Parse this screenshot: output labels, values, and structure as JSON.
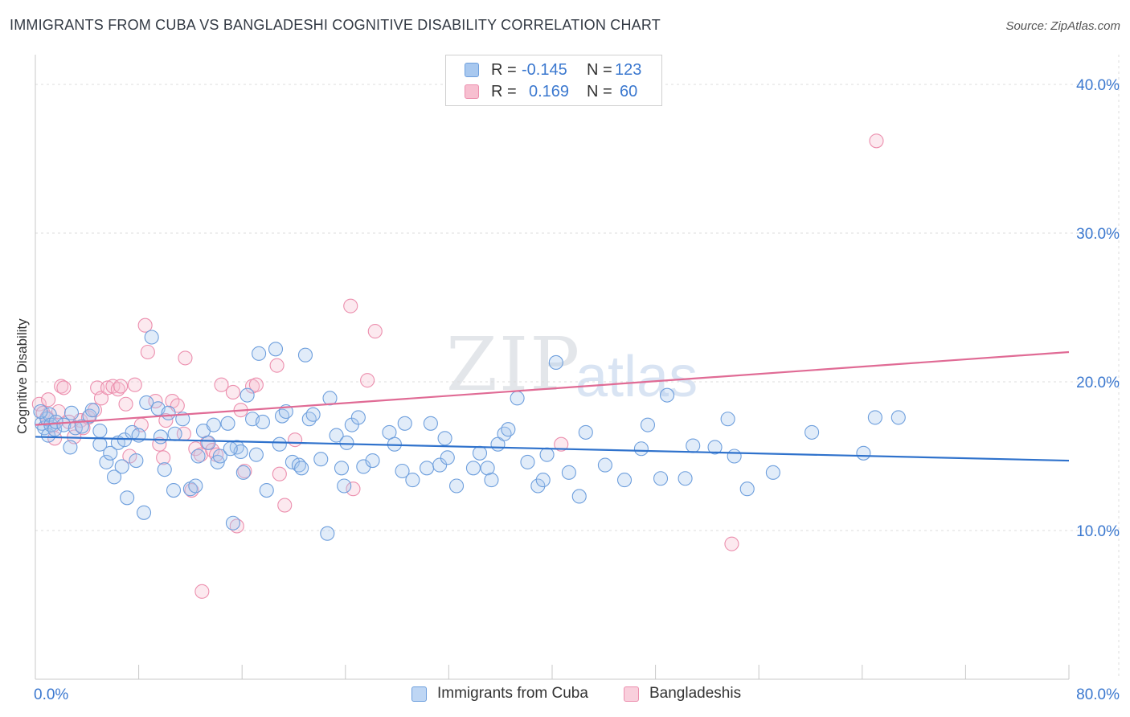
{
  "title": "IMMIGRANTS FROM CUBA VS BANGLADESHI COGNITIVE DISABILITY CORRELATION CHART",
  "source": "Source: ZipAtlas.com",
  "watermark": {
    "zip": "ZIP",
    "atlas": "atlas"
  },
  "legend": {
    "r_label": "R =",
    "n_label": "N =",
    "rows": [
      {
        "r": "-0.145",
        "n": "123",
        "color": "#a8c8ef",
        "edge": "#6e9fdd"
      },
      {
        "r": "0.169",
        "n": "60",
        "color": "#f7bfd0",
        "edge": "#ec8fae"
      }
    ]
  },
  "bottom_legend": [
    {
      "label": "Immigrants from Cuba",
      "color": "#bed6f4",
      "edge": "#6e9fdd"
    },
    {
      "label": "Bangladeshis",
      "color": "#f9cfdc",
      "edge": "#ec8fae"
    }
  ],
  "chart_data": {
    "type": "scatter",
    "title": "IMMIGRANTS FROM CUBA VS BANGLADESHI COGNITIVE DISABILITY CORRELATION CHART",
    "xlabel": "",
    "ylabel": "Cognitive Disability",
    "xlim": [
      0,
      80
    ],
    "ylim": [
      0,
      42
    ],
    "x_tick_labels": [
      "0.0%",
      "80.0%"
    ],
    "y_ticks": [
      10,
      20,
      30,
      40
    ],
    "y_tick_labels": [
      "10.0%",
      "20.0%",
      "30.0%",
      "40.0%"
    ],
    "grid": true,
    "series": [
      {
        "name": "Immigrants from Cuba",
        "color": "#6e9fdd",
        "fill": "rgba(168,200,239,0.35)",
        "trend": {
          "x": [
            0,
            80
          ],
          "y": [
            16.3,
            14.7
          ],
          "color": "#2f72cc"
        },
        "points": [
          [
            0.5,
            17.2
          ],
          [
            0.7,
            16.9
          ],
          [
            0.9,
            17.5
          ],
          [
            1.0,
            16.4
          ],
          [
            1.1,
            17.8
          ],
          [
            1.2,
            17.1
          ],
          [
            1.5,
            16.8
          ],
          [
            1.6,
            17.3
          ],
          [
            2.2,
            17.1
          ],
          [
            2.7,
            15.6
          ],
          [
            2.8,
            17.9
          ],
          [
            3.1,
            16.9
          ],
          [
            4.2,
            17.7
          ],
          [
            4.4,
            18.1
          ],
          [
            5.0,
            16.7
          ],
          [
            5.0,
            15.8
          ],
          [
            5.5,
            14.6
          ],
          [
            5.8,
            15.2
          ],
          [
            6.1,
            13.6
          ],
          [
            6.4,
            15.9
          ],
          [
            6.7,
            14.3
          ],
          [
            6.9,
            16.1
          ],
          [
            7.1,
            12.2
          ],
          [
            7.5,
            16.6
          ],
          [
            7.8,
            14.7
          ],
          [
            8.0,
            16.4
          ],
          [
            8.4,
            11.2
          ],
          [
            8.6,
            18.6
          ],
          [
            9.0,
            23.0
          ],
          [
            9.5,
            18.2
          ],
          [
            10.0,
            14.1
          ],
          [
            10.3,
            17.9
          ],
          [
            10.7,
            12.7
          ],
          [
            10.8,
            16.5
          ],
          [
            11.4,
            17.5
          ],
          [
            12.0,
            12.8
          ],
          [
            12.4,
            13.0
          ],
          [
            12.6,
            15.0
          ],
          [
            13.0,
            16.7
          ],
          [
            13.4,
            15.9
          ],
          [
            13.8,
            17.1
          ],
          [
            14.1,
            14.6
          ],
          [
            14.3,
            15.0
          ],
          [
            14.9,
            17.2
          ],
          [
            15.3,
            10.5
          ],
          [
            15.6,
            15.6
          ],
          [
            15.9,
            15.3
          ],
          [
            16.1,
            13.9
          ],
          [
            16.4,
            19.1
          ],
          [
            16.8,
            17.5
          ],
          [
            17.1,
            15.1
          ],
          [
            17.3,
            21.9
          ],
          [
            17.6,
            17.3
          ],
          [
            17.9,
            12.7
          ],
          [
            18.6,
            22.2
          ],
          [
            18.9,
            15.8
          ],
          [
            19.1,
            17.7
          ],
          [
            19.4,
            18.0
          ],
          [
            19.9,
            14.6
          ],
          [
            20.4,
            14.4
          ],
          [
            20.6,
            14.2
          ],
          [
            20.9,
            21.8
          ],
          [
            21.2,
            17.5
          ],
          [
            21.5,
            17.8
          ],
          [
            22.1,
            14.8
          ],
          [
            22.6,
            9.8
          ],
          [
            22.8,
            18.9
          ],
          [
            23.3,
            16.4
          ],
          [
            23.7,
            14.2
          ],
          [
            23.9,
            13.0
          ],
          [
            24.1,
            15.9
          ],
          [
            24.5,
            17.1
          ],
          [
            25.0,
            17.6
          ],
          [
            25.4,
            14.3
          ],
          [
            26.1,
            14.7
          ],
          [
            27.4,
            16.6
          ],
          [
            27.8,
            15.8
          ],
          [
            28.4,
            14.0
          ],
          [
            28.6,
            17.2
          ],
          [
            29.2,
            13.4
          ],
          [
            30.3,
            14.2
          ],
          [
            30.6,
            17.2
          ],
          [
            31.3,
            14.4
          ],
          [
            31.7,
            16.2
          ],
          [
            31.9,
            14.9
          ],
          [
            32.6,
            13.0
          ],
          [
            33.9,
            14.2
          ],
          [
            34.4,
            15.2
          ],
          [
            35.0,
            14.2
          ],
          [
            35.3,
            13.4
          ],
          [
            35.8,
            15.8
          ],
          [
            36.3,
            16.5
          ],
          [
            36.6,
            16.8
          ],
          [
            37.3,
            18.9
          ],
          [
            38.1,
            14.6
          ],
          [
            38.9,
            13.0
          ],
          [
            39.3,
            13.4
          ],
          [
            39.6,
            15.1
          ],
          [
            40.3,
            21.3
          ],
          [
            41.3,
            13.9
          ],
          [
            42.1,
            12.3
          ],
          [
            42.6,
            16.6
          ],
          [
            44.1,
            14.4
          ],
          [
            45.6,
            13.4
          ],
          [
            46.9,
            15.5
          ],
          [
            47.4,
            17.1
          ],
          [
            48.4,
            13.5
          ],
          [
            48.9,
            19.1
          ],
          [
            50.3,
            13.5
          ],
          [
            50.9,
            15.7
          ],
          [
            52.6,
            15.6
          ],
          [
            53.6,
            17.5
          ],
          [
            54.1,
            15.0
          ],
          [
            55.1,
            12.8
          ],
          [
            57.1,
            13.9
          ],
          [
            60.1,
            16.6
          ],
          [
            64.1,
            15.2
          ],
          [
            65.0,
            17.6
          ],
          [
            66.8,
            17.6
          ],
          [
            0.4,
            18.0
          ],
          [
            3.6,
            17.0
          ],
          [
            9.7,
            16.3
          ],
          [
            15.1,
            15.5
          ]
        ]
      },
      {
        "name": "Bangladeshis",
        "color": "#ec8fae",
        "fill": "rgba(247,191,208,0.35)",
        "trend": {
          "x": [
            0,
            80
          ],
          "y": [
            17.1,
            22.0
          ],
          "color": "#e06b95"
        },
        "points": [
          [
            0.3,
            18.5
          ],
          [
            0.6,
            17.9
          ],
          [
            0.9,
            17.6
          ],
          [
            1.0,
            18.8
          ],
          [
            1.4,
            17.1
          ],
          [
            1.8,
            18.0
          ],
          [
            2.0,
            19.7
          ],
          [
            2.2,
            19.6
          ],
          [
            2.6,
            17.3
          ],
          [
            3.0,
            16.3
          ],
          [
            3.5,
            17.4
          ],
          [
            3.7,
            16.9
          ],
          [
            4.1,
            17.6
          ],
          [
            4.6,
            18.1
          ],
          [
            4.8,
            19.6
          ],
          [
            5.1,
            18.9
          ],
          [
            5.6,
            19.6
          ],
          [
            6.0,
            19.7
          ],
          [
            6.4,
            19.5
          ],
          [
            6.6,
            19.7
          ],
          [
            7.0,
            18.5
          ],
          [
            7.3,
            15.0
          ],
          [
            7.7,
            19.8
          ],
          [
            8.2,
            17.1
          ],
          [
            8.5,
            23.8
          ],
          [
            8.7,
            22.0
          ],
          [
            9.3,
            18.7
          ],
          [
            9.6,
            15.8
          ],
          [
            10.1,
            17.4
          ],
          [
            10.6,
            18.7
          ],
          [
            11.0,
            18.4
          ],
          [
            11.6,
            21.6
          ],
          [
            12.1,
            12.7
          ],
          [
            12.4,
            15.5
          ],
          [
            12.8,
            15.1
          ],
          [
            13.3,
            15.9
          ],
          [
            13.7,
            15.4
          ],
          [
            14.0,
            15.1
          ],
          [
            14.4,
            19.8
          ],
          [
            15.3,
            19.3
          ],
          [
            15.6,
            10.3
          ],
          [
            15.9,
            18.1
          ],
          [
            16.2,
            14.0
          ],
          [
            16.8,
            19.7
          ],
          [
            17.1,
            19.8
          ],
          [
            18.7,
            21.1
          ],
          [
            18.9,
            13.8
          ],
          [
            19.3,
            11.7
          ],
          [
            20.1,
            16.1
          ],
          [
            24.4,
            25.1
          ],
          [
            24.6,
            12.8
          ],
          [
            25.7,
            20.1
          ],
          [
            26.3,
            23.4
          ],
          [
            40.7,
            15.8
          ],
          [
            53.9,
            9.1
          ],
          [
            65.1,
            36.2
          ],
          [
            1.5,
            16.2
          ],
          [
            9.9,
            14.9
          ],
          [
            11.5,
            16.5
          ],
          [
            12.9,
            5.9
          ]
        ]
      }
    ]
  }
}
